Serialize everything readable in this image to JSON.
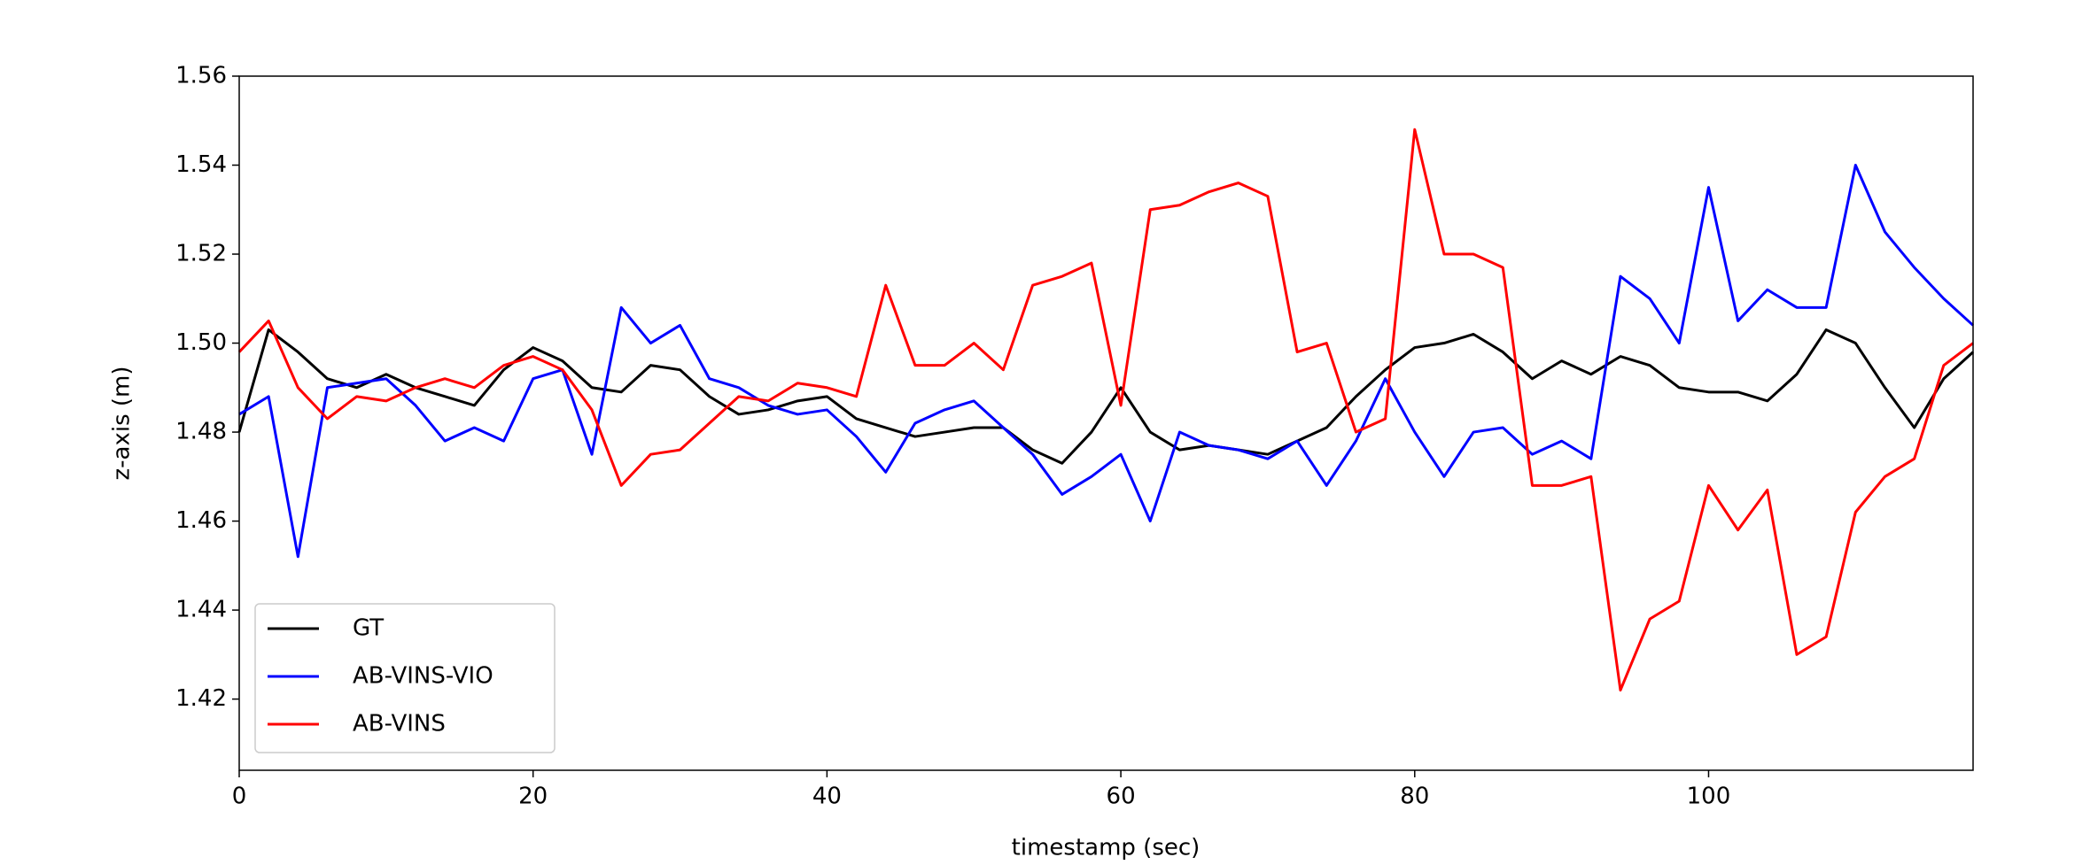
{
  "chart_data": {
    "type": "line",
    "xlabel": "timestamp (sec)",
    "ylabel": "z-axis (m)",
    "x": [
      0,
      2,
      4,
      6,
      8,
      10,
      12,
      14,
      16,
      18,
      20,
      22,
      24,
      26,
      28,
      30,
      32,
      34,
      36,
      38,
      40,
      42,
      44,
      46,
      48,
      50,
      52,
      54,
      56,
      58,
      60,
      62,
      64,
      66,
      68,
      70,
      72,
      74,
      76,
      78,
      80,
      82,
      84,
      86,
      88,
      90,
      92,
      94,
      96,
      98,
      100,
      102,
      104,
      106,
      108,
      110,
      112,
      114,
      116,
      118
    ],
    "series": [
      {
        "name": "GT",
        "color": "#000000",
        "values": [
          1.48,
          1.503,
          1.498,
          1.492,
          1.49,
          1.493,
          1.49,
          1.488,
          1.486,
          1.494,
          1.499,
          1.496,
          1.49,
          1.489,
          1.495,
          1.494,
          1.488,
          1.484,
          1.485,
          1.487,
          1.488,
          1.483,
          1.481,
          1.479,
          1.48,
          1.481,
          1.481,
          1.476,
          1.473,
          1.48,
          1.49,
          1.48,
          1.476,
          1.477,
          1.476,
          1.475,
          1.478,
          1.481,
          1.488,
          1.494,
          1.499,
          1.5,
          1.502,
          1.498,
          1.492,
          1.496,
          1.493,
          1.497,
          1.495,
          1.49,
          1.489,
          1.489,
          1.487,
          1.493,
          1.503,
          1.5,
          1.49,
          1.481,
          1.492,
          1.498
        ]
      },
      {
        "name": "AB-VINS-VIO",
        "color": "#0000ff",
        "values": [
          1.484,
          1.488,
          1.452,
          1.49,
          1.491,
          1.492,
          1.486,
          1.478,
          1.481,
          1.478,
          1.492,
          1.494,
          1.475,
          1.508,
          1.5,
          1.504,
          1.492,
          1.49,
          1.486,
          1.484,
          1.485,
          1.479,
          1.471,
          1.482,
          1.485,
          1.487,
          1.481,
          1.475,
          1.466,
          1.47,
          1.475,
          1.46,
          1.48,
          1.477,
          1.476,
          1.474,
          1.478,
          1.468,
          1.478,
          1.492,
          1.48,
          1.47,
          1.48,
          1.481,
          1.475,
          1.478,
          1.474,
          1.515,
          1.51,
          1.5,
          1.535,
          1.505,
          1.512,
          1.508,
          1.508,
          1.54,
          1.525,
          1.517,
          1.51,
          1.504
        ]
      },
      {
        "name": "AB-VINS",
        "color": "#ff0000",
        "values": [
          1.498,
          1.505,
          1.49,
          1.483,
          1.488,
          1.487,
          1.49,
          1.492,
          1.49,
          1.495,
          1.497,
          1.494,
          1.485,
          1.468,
          1.475,
          1.476,
          1.482,
          1.488,
          1.487,
          1.491,
          1.49,
          1.488,
          1.513,
          1.495,
          1.495,
          1.5,
          1.494,
          1.513,
          1.515,
          1.518,
          1.486,
          1.53,
          1.531,
          1.534,
          1.536,
          1.533,
          1.498,
          1.5,
          1.48,
          1.483,
          1.548,
          1.52,
          1.52,
          1.517,
          1.468,
          1.468,
          1.47,
          1.422,
          1.438,
          1.442,
          1.468,
          1.458,
          1.467,
          1.43,
          1.434,
          1.462,
          1.47,
          1.474,
          1.495,
          1.5
        ]
      }
    ],
    "xlim": [
      0,
      118
    ],
    "ylim": [
      1.404,
      1.56
    ],
    "xticks": [
      0,
      20,
      40,
      60,
      80,
      100
    ],
    "yticks": [
      1.42,
      1.44,
      1.46,
      1.48,
      {
        "value": 1.5,
        "label": "1.50"
      },
      1.52,
      1.54,
      1.56
    ],
    "legend": "lower left"
  }
}
